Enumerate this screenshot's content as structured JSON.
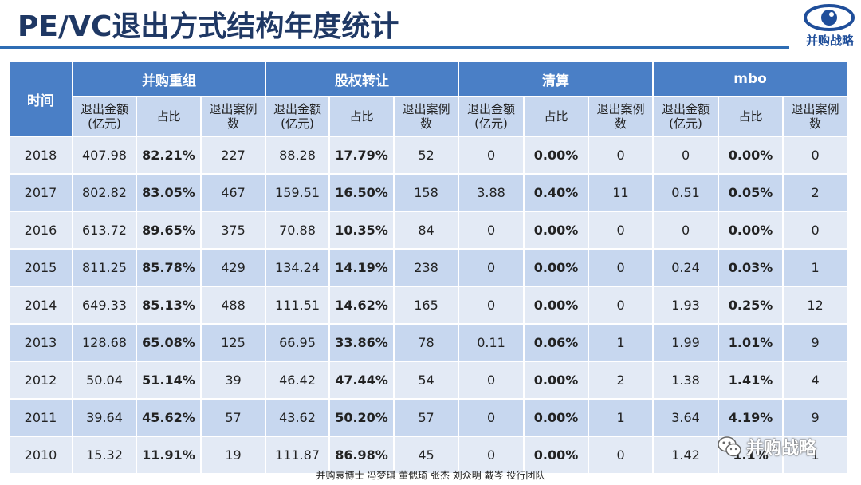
{
  "title": "PE/VC退出方式结构年度统计",
  "logo": {
    "icon": "eye-icon",
    "text": "并购战略"
  },
  "table": {
    "time_header": "时间",
    "groups": [
      "并购重组",
      "股权转让",
      "清算",
      "mbo"
    ],
    "subheaders": {
      "amount_line1": "退出金额",
      "amount_line2": "(亿元)",
      "ratio": "占比",
      "cases_line1": "退出案例",
      "cases_line2": "数"
    },
    "rows": [
      {
        "year": "2018",
        "ma_amt": "407.98",
        "ma_pct": "82.21%",
        "ma_cnt": "227",
        "eq_amt": "88.28",
        "eq_pct": "17.79%",
        "eq_cnt": "52",
        "lq_amt": "0",
        "lq_pct": "0.00%",
        "lq_cnt": "0",
        "mbo_amt": "0",
        "mbo_pct": "0.00%",
        "mbo_cnt": "0"
      },
      {
        "year": "2017",
        "ma_amt": "802.82",
        "ma_pct": "83.05%",
        "ma_cnt": "467",
        "eq_amt": "159.51",
        "eq_pct": "16.50%",
        "eq_cnt": "158",
        "lq_amt": "3.88",
        "lq_pct": "0.40%",
        "lq_cnt": "11",
        "mbo_amt": "0.51",
        "mbo_pct": "0.05%",
        "mbo_cnt": "2"
      },
      {
        "year": "2016",
        "ma_amt": "613.72",
        "ma_pct": "89.65%",
        "ma_cnt": "375",
        "eq_amt": "70.88",
        "eq_pct": "10.35%",
        "eq_cnt": "84",
        "lq_amt": "0",
        "lq_pct": "0.00%",
        "lq_cnt": "0",
        "mbo_amt": "0",
        "mbo_pct": "0.00%",
        "mbo_cnt": "0"
      },
      {
        "year": "2015",
        "ma_amt": "811.25",
        "ma_pct": "85.78%",
        "ma_cnt": "429",
        "eq_amt": "134.24",
        "eq_pct": "14.19%",
        "eq_cnt": "238",
        "lq_amt": "0",
        "lq_pct": "0.00%",
        "lq_cnt": "0",
        "mbo_amt": "0.24",
        "mbo_pct": "0.03%",
        "mbo_cnt": "1"
      },
      {
        "year": "2014",
        "ma_amt": "649.33",
        "ma_pct": "85.13%",
        "ma_cnt": "488",
        "eq_amt": "111.51",
        "eq_pct": "14.62%",
        "eq_cnt": "165",
        "lq_amt": "0",
        "lq_pct": "0.00%",
        "lq_cnt": "0",
        "mbo_amt": "1.93",
        "mbo_pct": "0.25%",
        "mbo_cnt": "12"
      },
      {
        "year": "2013",
        "ma_amt": "128.68",
        "ma_pct": "65.08%",
        "ma_cnt": "125",
        "eq_amt": "66.95",
        "eq_pct": "33.86%",
        "eq_cnt": "78",
        "lq_amt": "0.11",
        "lq_pct": "0.06%",
        "lq_cnt": "1",
        "mbo_amt": "1.99",
        "mbo_pct": "1.01%",
        "mbo_cnt": "9"
      },
      {
        "year": "2012",
        "ma_amt": "50.04",
        "ma_pct": "51.14%",
        "ma_cnt": "39",
        "eq_amt": "46.42",
        "eq_pct": "47.44%",
        "eq_cnt": "54",
        "lq_amt": "0",
        "lq_pct": "0.00%",
        "lq_cnt": "2",
        "mbo_amt": "1.38",
        "mbo_pct": "1.41%",
        "mbo_cnt": "4"
      },
      {
        "year": "2011",
        "ma_amt": "39.64",
        "ma_pct": "45.62%",
        "ma_cnt": "57",
        "eq_amt": "43.62",
        "eq_pct": "50.20%",
        "eq_cnt": "57",
        "lq_amt": "0",
        "lq_pct": "0.00%",
        "lq_cnt": "1",
        "mbo_amt": "3.64",
        "mbo_pct": "4.19%",
        "mbo_cnt": "9"
      },
      {
        "year": "2010",
        "ma_amt": "15.32",
        "ma_pct": "11.91%",
        "ma_cnt": "19",
        "eq_amt": "111.87",
        "eq_pct": "86.98%",
        "eq_cnt": "45",
        "lq_amt": "0",
        "lq_pct": "0.00%",
        "lq_cnt": "0",
        "mbo_amt": "1.42",
        "mbo_pct": "1.1%",
        "mbo_cnt": "1"
      }
    ]
  },
  "footer": "并购袁博士 冯梦琪 董偲琦 张杰 刘众明 戴岑 投行团队",
  "watermark": {
    "icon": "wechat-icon",
    "text": "并购战略"
  },
  "colors": {
    "header_blue": "#4a7fc6",
    "row_light": "#e3eaf5",
    "row_dark": "#c7d7ef",
    "title": "#1f3864"
  }
}
